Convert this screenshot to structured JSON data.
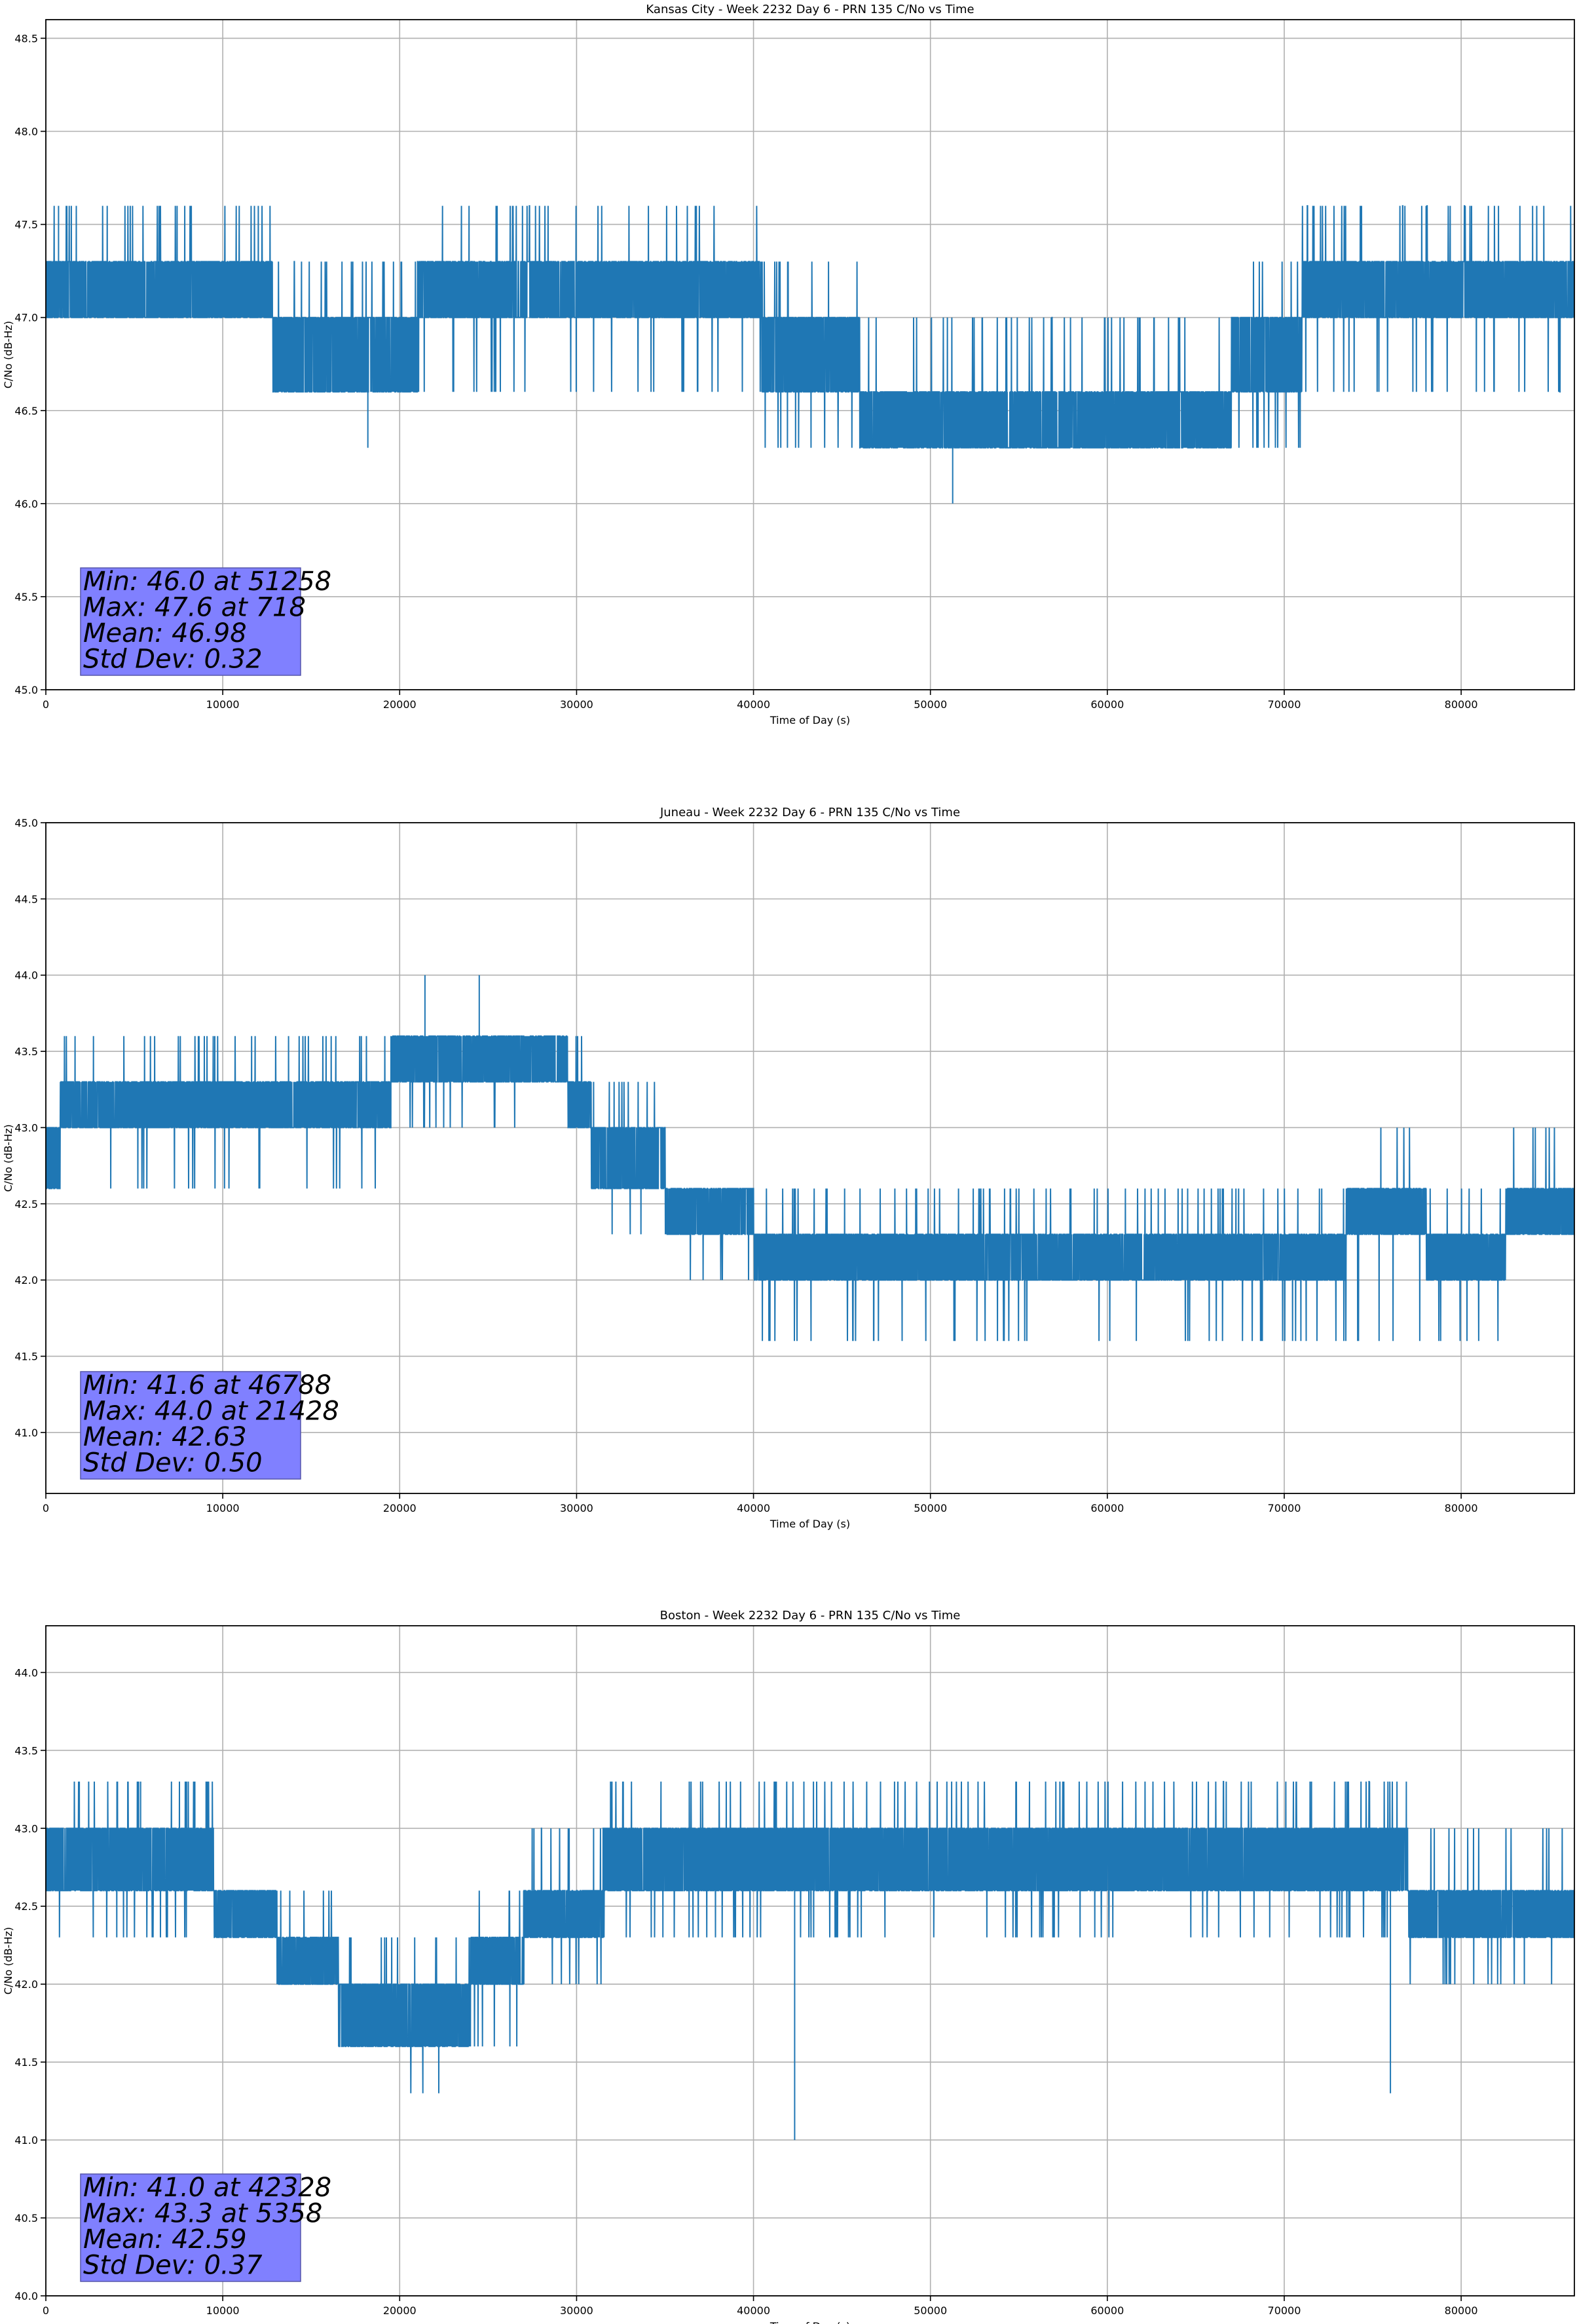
{
  "chart_data": [
    {
      "type": "line",
      "title": "Kansas City - Week 2232 Day 6 - PRN 135 C/No vs Time",
      "xlabel": "Time of Day (s)",
      "ylabel": "C/No (dB-Hz)",
      "xlim": [
        0,
        86400
      ],
      "ylim": [
        45.0,
        48.6
      ],
      "xticks": [
        0,
        10000,
        20000,
        30000,
        40000,
        50000,
        60000,
        70000,
        80000
      ],
      "yticks": [
        45.0,
        45.5,
        46.0,
        46.5,
        47.0,
        47.5,
        48.0,
        48.5
      ],
      "grid": true,
      "color": "#1f77b4",
      "quantization": 0.3,
      "segments": [
        {
          "x0": 0,
          "x1": 12800,
          "low": 47.0,
          "high": 47.3,
          "spike_up": 47.6,
          "spike_down": 47.0
        },
        {
          "x0": 12800,
          "x1": 21000,
          "low": 46.6,
          "high": 47.0,
          "spike_up": 47.3,
          "spike_down": 46.6
        },
        {
          "x0": 21000,
          "x1": 40500,
          "low": 47.0,
          "high": 47.3,
          "spike_up": 47.6,
          "spike_down": 46.6
        },
        {
          "x0": 40500,
          "x1": 46000,
          "low": 46.6,
          "high": 47.0,
          "spike_up": 47.3,
          "spike_down": 46.3
        },
        {
          "x0": 46000,
          "x1": 67000,
          "low": 46.3,
          "high": 46.6,
          "spike_up": 47.0,
          "spike_down": 46.3
        },
        {
          "x0": 67000,
          "x1": 71000,
          "low": 46.6,
          "high": 47.0,
          "spike_up": 47.3,
          "spike_down": 46.3
        },
        {
          "x0": 71000,
          "x1": 86400,
          "low": 47.0,
          "high": 47.3,
          "spike_up": 47.6,
          "spike_down": 46.6
        }
      ],
      "extremes": [
        {
          "x": 51258,
          "y": 46.0
        },
        {
          "x": 718,
          "y": 47.6
        },
        {
          "x": 18200,
          "y": 46.3
        }
      ],
      "stats": {
        "min": "Min: 46.0 at 51258",
        "max": "Max: 47.6 at 718",
        "mean": "Mean: 46.98",
        "std": "Std Dev: 0.32"
      }
    },
    {
      "type": "line",
      "title": "Juneau - Week 2232 Day 6 - PRN 135 C/No vs Time",
      "xlabel": "Time of Day (s)",
      "ylabel": "C/No (dB-Hz)",
      "xlim": [
        0,
        86400
      ],
      "ylim": [
        40.6,
        45.0
      ],
      "xticks": [
        0,
        10000,
        20000,
        30000,
        40000,
        50000,
        60000,
        70000,
        80000
      ],
      "yticks": [
        41.0,
        41.5,
        42.0,
        42.5,
        43.0,
        43.5,
        44.0,
        44.5,
        45.0
      ],
      "grid": true,
      "color": "#1f77b4",
      "quantization": 0.3,
      "segments": [
        {
          "x0": 0,
          "x1": 800,
          "low": 42.6,
          "high": 43.0,
          "spike_up": 43.0,
          "spike_down": 42.3
        },
        {
          "x0": 800,
          "x1": 19500,
          "low": 43.0,
          "high": 43.3,
          "spike_up": 43.6,
          "spike_down": 42.6
        },
        {
          "x0": 19500,
          "x1": 29500,
          "low": 43.3,
          "high": 43.6,
          "spike_up": 43.6,
          "spike_down": 43.0
        },
        {
          "x0": 29500,
          "x1": 30800,
          "low": 43.0,
          "high": 43.3,
          "spike_up": 43.6,
          "spike_down": 43.0
        },
        {
          "x0": 30800,
          "x1": 35000,
          "low": 42.6,
          "high": 43.0,
          "spike_up": 43.3,
          "spike_down": 42.3
        },
        {
          "x0": 35000,
          "x1": 40000,
          "low": 42.3,
          "high": 42.6,
          "spike_up": 42.6,
          "spike_down": 42.0
        },
        {
          "x0": 40000,
          "x1": 73500,
          "low": 42.0,
          "high": 42.3,
          "spike_up": 42.6,
          "spike_down": 41.6
        },
        {
          "x0": 73500,
          "x1": 78000,
          "low": 42.3,
          "high": 42.6,
          "spike_up": 43.0,
          "spike_down": 41.6
        },
        {
          "x0": 78000,
          "x1": 82500,
          "low": 42.0,
          "high": 42.3,
          "spike_up": 42.6,
          "spike_down": 41.6
        },
        {
          "x0": 82500,
          "x1": 86400,
          "low": 42.3,
          "high": 42.6,
          "spike_up": 43.0,
          "spike_down": 42.3
        }
      ],
      "extremes": [
        {
          "x": 46788,
          "y": 41.6
        },
        {
          "x": 21428,
          "y": 44.0
        },
        {
          "x": 24500,
          "y": 44.0
        }
      ],
      "stats": {
        "min": "Min: 41.6 at 46788",
        "max": "Max: 44.0 at 21428",
        "mean": "Mean: 42.63",
        "std": "Std Dev: 0.50"
      }
    },
    {
      "type": "line",
      "title": "Boston - Week 2232 Day 6 - PRN 135 C/No vs Time",
      "xlabel": "Time of Day (s)",
      "ylabel": "C/No (dB-Hz)",
      "xlim": [
        0,
        86400
      ],
      "ylim": [
        40.0,
        44.3
      ],
      "xticks": [
        0,
        10000,
        20000,
        30000,
        40000,
        50000,
        60000,
        70000,
        80000
      ],
      "yticks": [
        40.0,
        40.5,
        41.0,
        41.5,
        42.0,
        42.5,
        43.0,
        43.5,
        44.0
      ],
      "grid": true,
      "color": "#1f77b4",
      "quantization": 0.3,
      "segments": [
        {
          "x0": 0,
          "x1": 9500,
          "low": 42.6,
          "high": 43.0,
          "spike_up": 43.3,
          "spike_down": 42.3
        },
        {
          "x0": 9500,
          "x1": 13000,
          "low": 42.3,
          "high": 42.6,
          "spike_up": 42.6,
          "spike_down": 42.3
        },
        {
          "x0": 13000,
          "x1": 16500,
          "low": 42.0,
          "high": 42.3,
          "spike_up": 42.6,
          "spike_down": 42.0
        },
        {
          "x0": 16500,
          "x1": 18500,
          "low": 41.6,
          "high": 42.0,
          "spike_up": 42.3,
          "spike_down": 41.6
        },
        {
          "x0": 18500,
          "x1": 24000,
          "low": 41.6,
          "high": 42.0,
          "spike_up": 42.3,
          "spike_down": 41.3
        },
        {
          "x0": 24000,
          "x1": 27000,
          "low": 42.0,
          "high": 42.3,
          "spike_up": 42.6,
          "spike_down": 41.6
        },
        {
          "x0": 27000,
          "x1": 31500,
          "low": 42.3,
          "high": 42.6,
          "spike_up": 43.0,
          "spike_down": 42.0
        },
        {
          "x0": 31500,
          "x1": 77000,
          "low": 42.6,
          "high": 43.0,
          "spike_up": 43.3,
          "spike_down": 42.3
        },
        {
          "x0": 77000,
          "x1": 86400,
          "low": 42.3,
          "high": 42.6,
          "spike_up": 43.0,
          "spike_down": 42.0
        }
      ],
      "extremes": [
        {
          "x": 42328,
          "y": 41.0
        },
        {
          "x": 5358,
          "y": 43.3
        },
        {
          "x": 76000,
          "y": 41.3
        }
      ],
      "stats": {
        "min": "Min: 41.0 at 42328",
        "max": "Max: 43.3 at 5358",
        "mean": "Mean: 42.59",
        "std": "Std Dev: 0.37"
      }
    }
  ]
}
